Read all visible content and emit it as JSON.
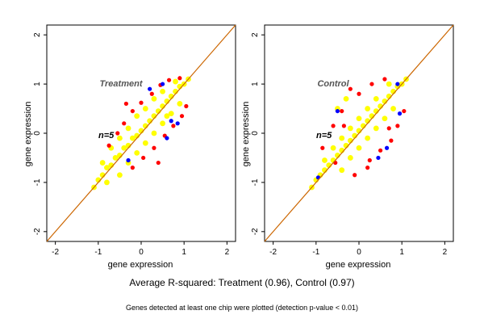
{
  "figure": {
    "caption": "Average R-squared: Treatment (0.96), Control (0.97)",
    "note": "Genes detected at least one chip were plotted (detection p-value < 0.01)"
  },
  "chart_data": [
    {
      "type": "scatter",
      "title": "Treatment",
      "annotation": "n=5",
      "xlabel": "gene expression",
      "ylabel": "gene expression",
      "xlim": [
        -2.2,
        2.2
      ],
      "ylim": [
        -2.2,
        2.2
      ],
      "xticks": [
        -2,
        -1,
        0,
        1,
        2
      ],
      "yticks": [
        -2,
        -1,
        0,
        1,
        2
      ],
      "grid": false,
      "reference_line": {
        "slope": 1,
        "intercept": 0
      },
      "colors": {
        "reference_line": "#cc6600",
        "points_primary": "#ffff00",
        "points_secondary": "#ff0000",
        "points_tertiary": "#0000ff",
        "frame": "#000000"
      },
      "series": [
        {
          "color": "yellow",
          "points": [
            [
              -1.1,
              -1.1
            ],
            [
              -1.0,
              -0.95
            ],
            [
              -0.9,
              -0.85
            ],
            [
              -0.8,
              -0.7
            ],
            [
              -0.7,
              -0.65
            ],
            [
              -0.6,
              -0.5
            ],
            [
              -0.5,
              -0.45
            ],
            [
              -0.4,
              -0.3
            ],
            [
              -0.3,
              -0.25
            ],
            [
              -0.2,
              -0.1
            ],
            [
              -0.1,
              -0.05
            ],
            [
              0.0,
              0.05
            ],
            [
              0.1,
              0.15
            ],
            [
              0.2,
              0.25
            ],
            [
              0.3,
              0.35
            ],
            [
              0.4,
              0.45
            ],
            [
              0.5,
              0.55
            ],
            [
              0.6,
              0.65
            ],
            [
              0.7,
              0.75
            ],
            [
              0.8,
              0.85
            ],
            [
              0.9,
              0.95
            ],
            [
              1.0,
              1.0
            ],
            [
              1.1,
              1.1
            ],
            [
              -0.7,
              -0.3
            ],
            [
              -0.5,
              -0.1
            ],
            [
              -0.3,
              0.1
            ],
            [
              -0.1,
              0.35
            ],
            [
              0.1,
              0.5
            ],
            [
              0.3,
              0.7
            ],
            [
              0.5,
              0.85
            ],
            [
              -0.5,
              -0.85
            ],
            [
              -0.3,
              -0.6
            ],
            [
              -0.1,
              -0.4
            ],
            [
              0.1,
              -0.2
            ],
            [
              0.3,
              0.0
            ],
            [
              0.5,
              0.2
            ],
            [
              0.7,
              0.4
            ],
            [
              0.9,
              0.6
            ],
            [
              -0.9,
              -0.6
            ],
            [
              -0.8,
              -1.0
            ],
            [
              0.8,
              1.05
            ],
            [
              0.6,
              0.35
            ]
          ]
        },
        {
          "color": "red",
          "points": [
            [
              -0.55,
              0.0
            ],
            [
              -0.4,
              0.2
            ],
            [
              -0.2,
              0.45
            ],
            [
              0.0,
              0.62
            ],
            [
              0.25,
              0.8
            ],
            [
              0.45,
              0.98
            ],
            [
              0.65,
              1.08
            ],
            [
              0.9,
              1.12
            ],
            [
              -0.2,
              -0.7
            ],
            [
              0.05,
              -0.5
            ],
            [
              0.3,
              -0.3
            ],
            [
              0.55,
              -0.05
            ],
            [
              0.75,
              0.15
            ],
            [
              0.95,
              0.35
            ],
            [
              1.05,
              0.55
            ],
            [
              -0.75,
              -0.25
            ],
            [
              -0.35,
              0.6
            ],
            [
              0.4,
              -0.6
            ]
          ]
        },
        {
          "color": "blue",
          "points": [
            [
              0.5,
              1.0
            ],
            [
              0.2,
              0.9
            ],
            [
              0.7,
              0.25
            ],
            [
              0.6,
              -0.1
            ],
            [
              -0.3,
              -0.55
            ],
            [
              0.85,
              0.2
            ]
          ]
        }
      ]
    },
    {
      "type": "scatter",
      "title": "Control",
      "annotation": "n=5",
      "xlabel": "gene expression",
      "ylabel": "gene expression",
      "xlim": [
        -2.2,
        2.2
      ],
      "ylim": [
        -2.2,
        2.2
      ],
      "xticks": [
        -2,
        -1,
        0,
        1,
        2
      ],
      "yticks": [
        -2,
        -1,
        0,
        1,
        2
      ],
      "grid": false,
      "reference_line": {
        "slope": 1,
        "intercept": 0
      },
      "colors": {
        "reference_line": "#cc6600",
        "points_primary": "#ffff00",
        "points_secondary": "#ff0000",
        "points_tertiary": "#0000ff",
        "frame": "#000000"
      },
      "series": [
        {
          "color": "yellow",
          "points": [
            [
              -1.1,
              -1.1
            ],
            [
              -1.0,
              -0.95
            ],
            [
              -0.9,
              -0.85
            ],
            [
              -0.8,
              -0.75
            ],
            [
              -0.7,
              -0.65
            ],
            [
              -0.6,
              -0.55
            ],
            [
              -0.5,
              -0.45
            ],
            [
              -0.4,
              -0.35
            ],
            [
              -0.3,
              -0.25
            ],
            [
              -0.2,
              -0.15
            ],
            [
              -0.1,
              -0.05
            ],
            [
              0.0,
              0.05
            ],
            [
              0.1,
              0.15
            ],
            [
              0.2,
              0.25
            ],
            [
              0.3,
              0.35
            ],
            [
              0.4,
              0.45
            ],
            [
              0.5,
              0.55
            ],
            [
              0.6,
              0.65
            ],
            [
              0.7,
              0.75
            ],
            [
              0.8,
              0.85
            ],
            [
              0.9,
              0.95
            ],
            [
              1.0,
              1.0
            ],
            [
              1.1,
              1.1
            ],
            [
              -0.6,
              -0.3
            ],
            [
              -0.4,
              -0.1
            ],
            [
              -0.2,
              0.1
            ],
            [
              0.0,
              0.3
            ],
            [
              0.2,
              0.5
            ],
            [
              0.4,
              0.7
            ],
            [
              -0.4,
              -0.75
            ],
            [
              -0.2,
              -0.5
            ],
            [
              0.0,
              -0.3
            ],
            [
              0.2,
              -0.1
            ],
            [
              0.4,
              0.1
            ],
            [
              0.6,
              0.3
            ],
            [
              0.8,
              0.5
            ],
            [
              -0.8,
              -0.55
            ],
            [
              0.7,
              1.0
            ],
            [
              -0.3,
              0.7
            ],
            [
              -0.5,
              0.5
            ]
          ]
        },
        {
          "color": "red",
          "points": [
            [
              -0.6,
              0.15
            ],
            [
              -0.4,
              0.45
            ],
            [
              0.0,
              0.8
            ],
            [
              0.3,
              1.0
            ],
            [
              0.6,
              1.1
            ],
            [
              0.25,
              -0.55
            ],
            [
              0.5,
              -0.35
            ],
            [
              0.75,
              -0.15
            ],
            [
              0.9,
              0.15
            ],
            [
              1.05,
              0.45
            ],
            [
              -0.85,
              -0.3
            ],
            [
              -0.55,
              -0.6
            ],
            [
              0.2,
              -0.7
            ],
            [
              -0.1,
              -0.85
            ],
            [
              -0.2,
              0.9
            ],
            [
              0.7,
              0.1
            ],
            [
              -0.35,
              0.15
            ]
          ]
        },
        {
          "color": "blue",
          "points": [
            [
              -0.5,
              0.45
            ],
            [
              0.9,
              1.0
            ],
            [
              0.65,
              -0.3
            ],
            [
              -0.95,
              -0.9
            ],
            [
              0.45,
              -0.5
            ],
            [
              0.95,
              0.4
            ]
          ]
        }
      ]
    }
  ]
}
